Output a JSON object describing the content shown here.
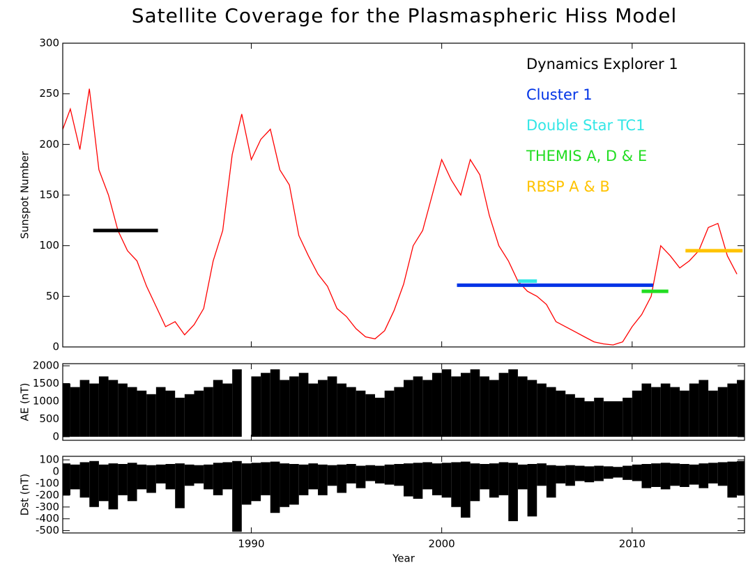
{
  "chart_data": [
    {
      "type": "line",
      "title": "Satellite Coverage for the Plasmaspheric Hiss Model",
      "ylabel": "Sunspot Number",
      "xlim": [
        1980.1,
        2015.9
      ],
      "xticks": [
        1990,
        2000,
        2010
      ],
      "ylim": [
        0,
        300
      ],
      "yticks": [
        0,
        50,
        100,
        150,
        200,
        250,
        300
      ],
      "x": [
        1980.0,
        1980.5,
        1981.0,
        1981.5,
        1982.0,
        1982.5,
        1983.0,
        1983.5,
        1984.0,
        1984.5,
        1985.0,
        1985.5,
        1986.0,
        1986.5,
        1987.0,
        1987.5,
        1988.0,
        1988.5,
        1989.0,
        1989.5,
        1990.0,
        1990.5,
        1991.0,
        1991.5,
        1992.0,
        1992.5,
        1993.0,
        1993.5,
        1994.0,
        1994.5,
        1995.0,
        1995.5,
        1996.0,
        1996.5,
        1997.0,
        1997.5,
        1998.0,
        1998.5,
        1999.0,
        1999.5,
        2000.0,
        2000.5,
        2001.0,
        2001.5,
        2002.0,
        2002.5,
        2003.0,
        2003.5,
        2004.0,
        2004.5,
        2005.0,
        2005.5,
        2006.0,
        2006.5,
        2007.0,
        2007.5,
        2008.0,
        2008.5,
        2009.0,
        2009.5,
        2010.0,
        2010.5,
        2011.0,
        2011.5,
        2012.0,
        2012.5,
        2013.0,
        2013.5,
        2014.0,
        2014.5,
        2015.0,
        2015.5
      ],
      "series": [
        {
          "name": "Sunspot Number",
          "color": "#ff0000",
          "values": [
            210,
            235,
            195,
            255,
            175,
            150,
            115,
            95,
            85,
            60,
            40,
            20,
            25,
            12,
            22,
            38,
            85,
            115,
            190,
            230,
            185,
            205,
            215,
            175,
            160,
            110,
            90,
            72,
            60,
            38,
            30,
            18,
            10,
            8,
            16,
            36,
            62,
            100,
            115,
            150,
            185,
            165,
            150,
            185,
            170,
            130,
            100,
            85,
            65,
            55,
            50,
            42,
            25,
            20,
            15,
            10,
            5,
            3,
            2,
            5,
            20,
            32,
            50,
            100,
            90,
            78,
            85,
            95,
            118,
            122,
            90,
            72
          ]
        }
      ],
      "coverage": [
        {
          "name": "Dynamics Explorer 1",
          "color": "#000000",
          "start": 1981.7,
          "end": 1985.1,
          "level": 115
        },
        {
          "name": "Cluster 1",
          "color": "#0033e6",
          "start": 2000.8,
          "end": 2011.1,
          "level": 61
        },
        {
          "name": "Double Star TC1",
          "color": "#33e6e6",
          "start": 2004.0,
          "end": 2005.0,
          "level": 65
        },
        {
          "name": "THEMIS A, D & E",
          "color": "#22dd22",
          "start": 2010.5,
          "end": 2011.9,
          "level": 55
        },
        {
          "name": "RBSP A & B",
          "color": "#ffc300",
          "start": 2012.8,
          "end": 2015.8,
          "level": 95
        }
      ]
    },
    {
      "type": "bar",
      "ylabel": "AE (nT)",
      "color": "#000000",
      "xlim": [
        1980.1,
        2015.9
      ],
      "xticks": [
        1990,
        2000,
        2010
      ],
      "ylim": [
        -100,
        2060
      ],
      "yticks": [
        0,
        500,
        1000,
        1500,
        2000
      ],
      "x": [
        1980.0,
        1980.5,
        1981.0,
        1981.5,
        1982.0,
        1982.5,
        1983.0,
        1983.5,
        1984.0,
        1984.5,
        1985.0,
        1985.5,
        1986.0,
        1986.5,
        1987.0,
        1987.5,
        1988.0,
        1988.5,
        1989.0,
        1989.5,
        1990.0,
        1990.5,
        1991.0,
        1991.5,
        1992.0,
        1992.5,
        1993.0,
        1993.5,
        1994.0,
        1994.5,
        1995.0,
        1995.5,
        1996.0,
        1996.5,
        1997.0,
        1997.5,
        1998.0,
        1998.5,
        1999.0,
        1999.5,
        2000.0,
        2000.5,
        2001.0,
        2001.5,
        2002.0,
        2002.5,
        2003.0,
        2003.5,
        2004.0,
        2004.5,
        2005.0,
        2005.5,
        2006.0,
        2006.5,
        2007.0,
        2007.5,
        2008.0,
        2008.5,
        2009.0,
        2009.5,
        2010.0,
        2010.5,
        2011.0,
        2011.5,
        2012.0,
        2012.5,
        2013.0,
        2013.5,
        2014.0,
        2014.5,
        2015.0,
        2015.5
      ],
      "values": [
        1500,
        1400,
        1600,
        1500,
        1700,
        1600,
        1500,
        1400,
        1300,
        1200,
        1400,
        1300,
        1100,
        1200,
        1300,
        1400,
        1600,
        1500,
        1900,
        null,
        1700,
        1800,
        1900,
        1600,
        1700,
        1800,
        1500,
        1600,
        1700,
        1500,
        1400,
        1300,
        1200,
        1100,
        1300,
        1400,
        1600,
        1700,
        1600,
        1800,
        1900,
        1700,
        1800,
        1900,
        1700,
        1600,
        1800,
        1900,
        1700,
        1600,
        1500,
        1400,
        1300,
        1200,
        1100,
        1000,
        1100,
        1000,
        1000,
        1100,
        1300,
        1500,
        1400,
        1500,
        1400,
        1300,
        1500,
        1600,
        1300,
        1400,
        1500,
        1600
      ]
    },
    {
      "type": "range",
      "ylabel": "Dst (nT)",
      "xlabel": "Year",
      "color": "#000000",
      "xlim": [
        1980.1,
        2015.9
      ],
      "xticks": [
        1990,
        2000,
        2010
      ],
      "ylim": [
        -520,
        130
      ],
      "yticks": [
        100,
        0,
        -100,
        -200,
        -300,
        -400,
        -500
      ],
      "x": [
        1980.0,
        1980.5,
        1981.0,
        1981.5,
        1982.0,
        1982.5,
        1983.0,
        1983.5,
        1984.0,
        1984.5,
        1985.0,
        1985.5,
        1986.0,
        1986.5,
        1987.0,
        1987.5,
        1988.0,
        1988.5,
        1989.0,
        1989.5,
        1990.0,
        1990.5,
        1991.0,
        1991.5,
        1992.0,
        1992.5,
        1993.0,
        1993.5,
        1994.0,
        1994.5,
        1995.0,
        1995.5,
        1996.0,
        1996.5,
        1997.0,
        1997.5,
        1998.0,
        1998.5,
        1999.0,
        1999.5,
        2000.0,
        2000.5,
        2001.0,
        2001.5,
        2002.0,
        2002.5,
        2003.0,
        2003.5,
        2004.0,
        2004.5,
        2005.0,
        2005.5,
        2006.0,
        2006.5,
        2007.0,
        2007.5,
        2008.0,
        2008.5,
        2009.0,
        2009.5,
        2010.0,
        2010.5,
        2011.0,
        2011.5,
        2012.0,
        2012.5,
        2013.0,
        2013.5,
        2014.0,
        2014.5,
        2015.0,
        2015.5
      ],
      "series": [
        {
          "name": "Dst max",
          "values": [
            70,
            60,
            80,
            90,
            60,
            70,
            65,
            75,
            60,
            55,
            60,
            65,
            70,
            60,
            55,
            60,
            75,
            80,
            90,
            70,
            75,
            80,
            85,
            70,
            65,
            60,
            70,
            60,
            55,
            60,
            65,
            50,
            55,
            50,
            60,
            65,
            70,
            75,
            80,
            70,
            75,
            80,
            85,
            70,
            65,
            70,
            80,
            75,
            60,
            65,
            70,
            55,
            50,
            55,
            50,
            45,
            50,
            45,
            40,
            50,
            60,
            65,
            70,
            75,
            70,
            65,
            60,
            70,
            75,
            80,
            85,
            90
          ]
        },
        {
          "name": "Dst min",
          "values": [
            -200,
            -150,
            -220,
            -300,
            -250,
            -320,
            -200,
            -250,
            -150,
            -180,
            -100,
            -150,
            -310,
            -120,
            -100,
            -150,
            -200,
            -150,
            -510,
            -280,
            -250,
            -200,
            -350,
            -300,
            -280,
            -200,
            -150,
            -200,
            -120,
            -180,
            -100,
            -140,
            -80,
            -100,
            -110,
            -120,
            -210,
            -230,
            -150,
            -200,
            -220,
            -300,
            -390,
            -250,
            -150,
            -220,
            -200,
            -420,
            -150,
            -380,
            -120,
            -220,
            -100,
            -120,
            -80,
            -90,
            -80,
            -60,
            -50,
            -70,
            -80,
            -140,
            -130,
            -150,
            -120,
            -130,
            -110,
            -140,
            -100,
            -120,
            -220,
            -200
          ]
        }
      ]
    }
  ]
}
